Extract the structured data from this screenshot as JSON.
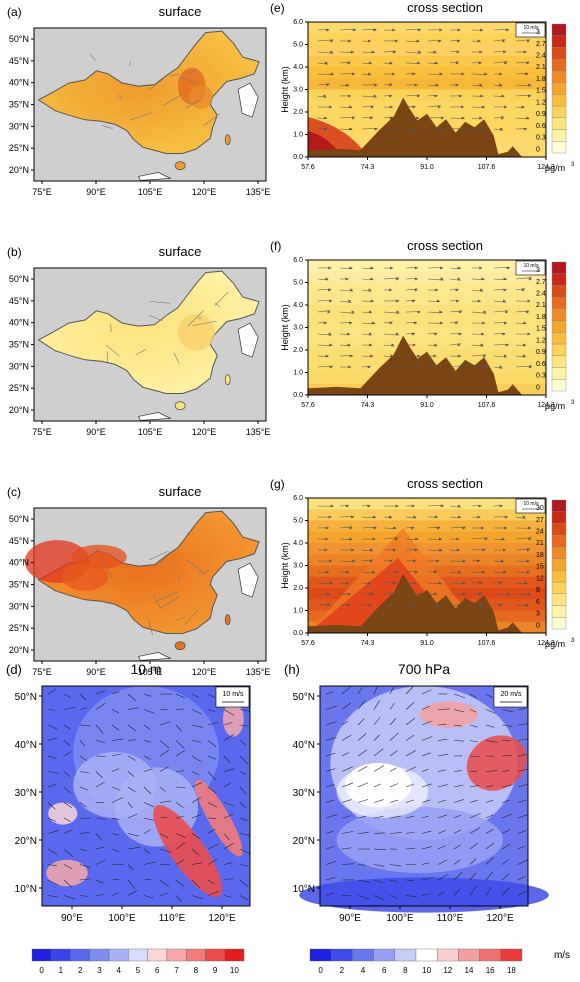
{
  "figure": {
    "panels": {
      "a": {
        "label": "(a)",
        "title": "surface"
      },
      "b": {
        "label": "(b)",
        "title": "surface"
      },
      "c": {
        "label": "(c)",
        "title": "surface"
      },
      "d": {
        "label": "(d)",
        "title": "10 m",
        "vector_ref": "10 m/s"
      },
      "e": {
        "label": "(e)",
        "title": "cross section",
        "vector_ref": "10 m/s"
      },
      "f": {
        "label": "(f)",
        "title": "cross section",
        "vector_ref": "10 m/s"
      },
      "g": {
        "label": "(g)",
        "title": "cross section",
        "vector_ref": "10 m/s"
      },
      "h": {
        "label": "(h)",
        "title": "700 hPa",
        "vector_ref": "20 m/s"
      }
    },
    "units": {
      "conc_base": "μg/m",
      "conc_sup": "3",
      "wind": "m/s"
    }
  },
  "chart_data": [
    {
      "id": "a",
      "type": "heatmap",
      "map": "China",
      "title": "surface",
      "x_ticks": [
        "75°E",
        "90°E",
        "105°E",
        "120°E",
        "135°E"
      ],
      "y_ticks": [
        "20°N",
        "25°N",
        "30°N",
        "35°N",
        "40°N",
        "45°N",
        "50°N"
      ],
      "fill": "yellow-orange, darker over North China Plain"
    },
    {
      "id": "b",
      "type": "heatmap",
      "map": "China",
      "title": "surface",
      "x_ticks": [
        "75°E",
        "90°E",
        "105°E",
        "120°E",
        "135°E"
      ],
      "y_ticks": [
        "20°N",
        "25°N",
        "30°N",
        "35°N",
        "40°N",
        "45°N",
        "50°N"
      ],
      "fill": "pale yellow"
    },
    {
      "id": "c",
      "type": "heatmap",
      "map": "China",
      "title": "surface",
      "x_ticks": [
        "75°E",
        "90°E",
        "105°E",
        "120°E",
        "135°E"
      ],
      "y_ticks": [
        "20°N",
        "25°N",
        "30°N",
        "35°N",
        "40°N",
        "45°N",
        "50°N"
      ],
      "fill": "orange-red, highest in northwest"
    },
    {
      "id": "e",
      "type": "heatmap",
      "title": "cross section",
      "ylabel": "Height (km)",
      "ylim": [
        0,
        6
      ],
      "x_ticks": [
        "57.6",
        "74.3",
        "91.0",
        "107.6",
        "124.3"
      ],
      "y_ticks": [
        "0.0",
        "1.0",
        "2.0",
        "3.0",
        "4.0",
        "5.0",
        "6.0"
      ],
      "colorbar": [
        "0",
        "0.3",
        "0.6",
        "0.9",
        "1.2",
        "1.5",
        "1.8",
        "2.1",
        "2.4",
        "2.7",
        "3"
      ]
    },
    {
      "id": "f",
      "type": "heatmap",
      "title": "cross section",
      "ylabel": "Height (km)",
      "ylim": [
        0,
        6
      ],
      "x_ticks": [
        "57.6",
        "74.3",
        "91.0",
        "107.6",
        "124.3"
      ],
      "y_ticks": [
        "0.0",
        "1.0",
        "2.0",
        "3.0",
        "4.0",
        "5.0",
        "6.0"
      ],
      "colorbar": [
        "0",
        "0.3",
        "0.6",
        "0.9",
        "1.2",
        "1.5",
        "1.8",
        "2.1",
        "2.4",
        "2.7",
        "3"
      ]
    },
    {
      "id": "g",
      "type": "heatmap",
      "title": "cross section",
      "ylabel": "Height (km)",
      "ylim": [
        0,
        6
      ],
      "x_ticks": [
        "57.6",
        "74.3",
        "91.0",
        "107.6",
        "124.3"
      ],
      "y_ticks": [
        "0.0",
        "1.0",
        "2.0",
        "3.0",
        "4.0",
        "5.0",
        "6.0"
      ],
      "colorbar": [
        "0",
        "3",
        "6",
        "9",
        "12",
        "15",
        "18",
        "21",
        "24",
        "27",
        "30"
      ]
    },
    {
      "id": "d",
      "type": "heatmap",
      "title": "10 m",
      "x_ticks": [
        "90°E",
        "100°E",
        "110°E",
        "120°E"
      ],
      "y_ticks": [
        "10°N",
        "20°N",
        "30°N",
        "40°N",
        "50°N"
      ],
      "colorbar": [
        "0",
        "1",
        "2",
        "3",
        "4",
        "5",
        "6",
        "7",
        "8",
        "9",
        "10"
      ],
      "vector_ref": "10 m/s"
    },
    {
      "id": "h",
      "type": "heatmap",
      "title": "700 hPa",
      "x_ticks": [
        "90°E",
        "100°E",
        "110°E",
        "120°E"
      ],
      "y_ticks": [
        "10°N",
        "20°N",
        "30°N",
        "40°N",
        "50°N"
      ],
      "colorbar": [
        "0",
        "2",
        "4",
        "6",
        "8",
        "10",
        "12",
        "14",
        "16",
        "18"
      ],
      "vector_ref": "20 m/s"
    }
  ],
  "colors": {
    "terrain": "#7a4514",
    "ocean_gray": "#cfcfcf",
    "conc_scale": [
      "#ffffd4",
      "#fff3a8",
      "#ffe680",
      "#fcd35a",
      "#f9bd3c",
      "#f5a52e",
      "#ef8a26",
      "#e76a1f",
      "#dc4a18",
      "#c92814",
      "#b0171e",
      "#d03b3b"
    ],
    "wind_scale_d": [
      "#2020e0",
      "#3a44e8",
      "#5a68ee",
      "#7f8cf2",
      "#a8b2f6",
      "#d7dcfa",
      "#fbd6d6",
      "#f6a8a8",
      "#f27b7b",
      "#ec4c4c",
      "#e41c1c"
    ],
    "wind_scale_h": [
      "#2020e0",
      "#3f4be8",
      "#6a76ee",
      "#97a0f4",
      "#c6cdf8",
      "#ffffff",
      "#fbd0d0",
      "#f5a0a0",
      "#f07070",
      "#e93b3b",
      "#e21212"
    ]
  }
}
